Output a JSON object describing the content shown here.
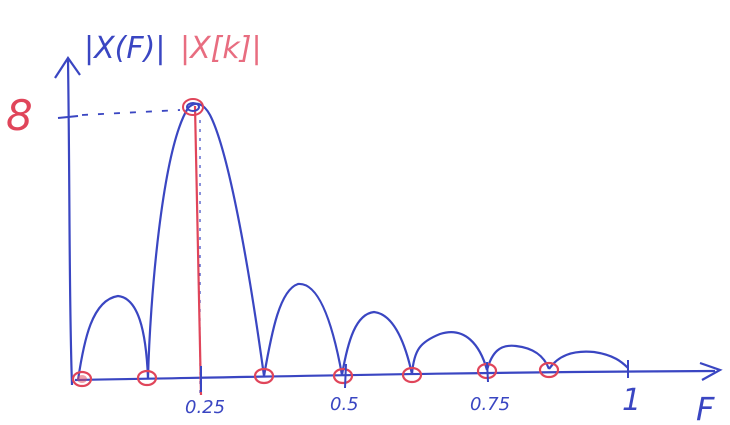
{
  "colors": {
    "ink_blue": "#3a46c2",
    "ink_red": "#e0455a",
    "ink_pink": "#e86d80"
  },
  "labels": {
    "y_axis_continuous": "|X(F)|",
    "y_axis_discrete": "|X[k]|",
    "x_axis": "F",
    "y_peak": "8"
  },
  "x_ticks": [
    "0.25",
    "0.5",
    "0.75",
    "1"
  ],
  "chart_data": {
    "type": "line",
    "title": "",
    "xlabel": "F",
    "ylabel": "|X(F)|",
    "xlim": [
      0,
      1.1
    ],
    "ylim": [
      0,
      8
    ],
    "series": [
      {
        "name": "|X(F)|",
        "x": [
          0.0,
          0.03,
          0.0625,
          0.1,
          0.125,
          0.16,
          0.2,
          0.22,
          0.25,
          0.28,
          0.3,
          0.34,
          0.375,
          0.4,
          0.43,
          0.46,
          0.5,
          0.53,
          0.56,
          0.58,
          0.625,
          0.66,
          0.7,
          0.72,
          0.75,
          0.78,
          0.8,
          0.82,
          0.85,
          0.9,
          0.95
        ],
        "y": [
          0,
          1.5,
          2.5,
          1.5,
          0,
          4.5,
          8,
          7.2,
          4.5,
          1.8,
          0,
          2.1,
          2.9,
          2.3,
          0,
          1.7,
          2.2,
          1.1,
          0,
          0.9,
          1.2,
          0.8,
          0,
          0.6,
          0.9,
          0.5,
          0,
          0.3,
          0.5,
          0.3,
          0
        ]
      },
      {
        "name": "|X[k]|",
        "x": [
          0,
          0.125,
          0.25,
          0.375,
          0.5,
          0.625,
          0.75,
          0.875
        ],
        "y": [
          0,
          0,
          8,
          0,
          0,
          0,
          0,
          0
        ]
      }
    ]
  }
}
